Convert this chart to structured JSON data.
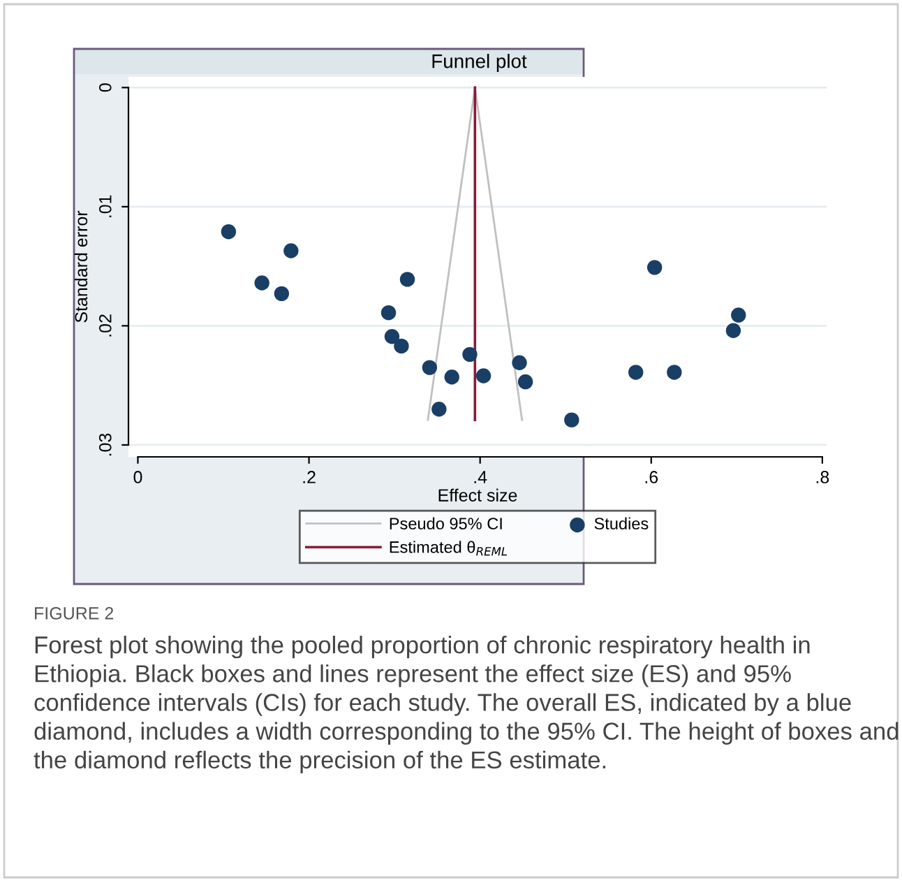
{
  "chart_data": {
    "type": "scatter",
    "title": "Funnel plot",
    "xlabel": "Effect size",
    "ylabel": "Standard error",
    "xlim": [
      -0.011,
      0.805
    ],
    "ylim": [
      0.031,
      -0.0009
    ],
    "xticks": [
      {
        "value": 0,
        "label": "0"
      },
      {
        "value": 0.2,
        "label": ".2"
      },
      {
        "value": 0.4,
        "label": ".4"
      },
      {
        "value": 0.6,
        "label": ".6"
      },
      {
        "value": 0.8,
        "label": ".8"
      }
    ],
    "yticks": [
      {
        "value": 0,
        "label": "0"
      },
      {
        "value": 0.01,
        "label": ".01"
      },
      {
        "value": 0.02,
        "label": ".02"
      },
      {
        "value": 0.03,
        "label": ".03"
      }
    ],
    "grid": "y",
    "legend": "bottom",
    "series": [
      {
        "name": "Pseudo 95% CI",
        "type": "line",
        "color": "#c0c0c0",
        "x": [
          0.339,
          0.394,
          0.449
        ],
        "values": [
          0.0279,
          0,
          0.0279
        ]
      },
      {
        "name": "Estimated θ$_{REML}$",
        "type": "line",
        "color": "#8b1a3a",
        "x": [
          0.394,
          0.394
        ],
        "values": [
          0,
          0.0279
        ]
      },
      {
        "name": "Studies",
        "marker": "circle",
        "color": "#1a3f66",
        "x": [
          0.106,
          0.145,
          0.168,
          0.179,
          0.293,
          0.297,
          0.308,
          0.315,
          0.341,
          0.352,
          0.367,
          0.388,
          0.404,
          0.446,
          0.453,
          0.507,
          0.582,
          0.627,
          0.604,
          0.696,
          0.702
        ],
        "values": [
          0.0121,
          0.0164,
          0.0173,
          0.0137,
          0.0189,
          0.0209,
          0.0217,
          0.0161,
          0.0235,
          0.027,
          0.0243,
          0.0224,
          0.0242,
          0.0231,
          0.0247,
          0.0279,
          0.0239,
          0.0239,
          0.0151,
          0.0204,
          0.0191
        ]
      }
    ],
    "annotations": [
      "FIGURE 2",
      "Forest plot showing the pooled proportion of chronic respiratory health in Ethiopia. Black boxes and lines represent the effect size (ES) and 95% confidence intervals (CIs) for each study. The overall ES, indicated by a blue diamond, includes a width corresponding to the 95% CI. The height of boxes and the diamond reflects the precision of the ES estimate."
    ]
  }
}
